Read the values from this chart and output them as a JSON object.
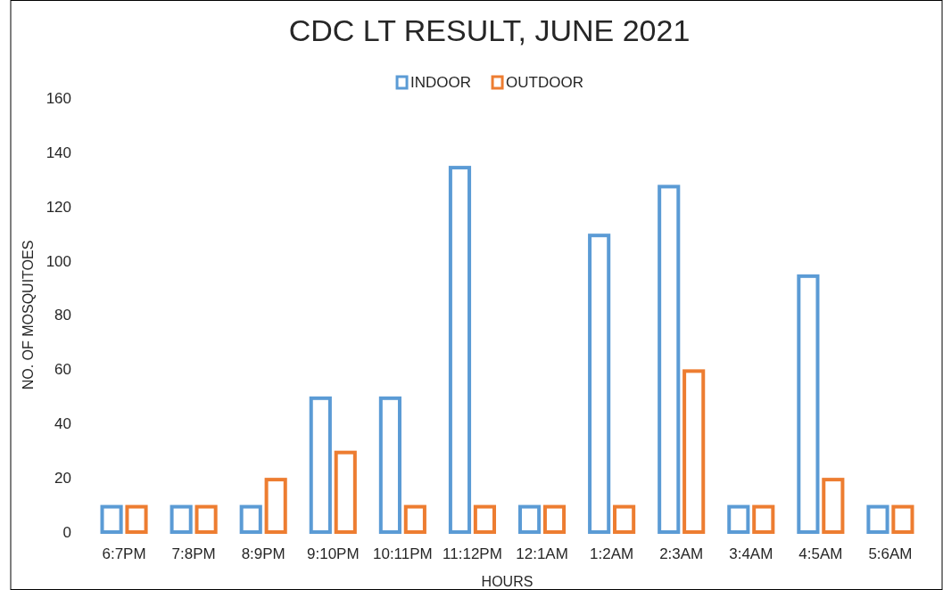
{
  "chart_data": {
    "type": "bar",
    "title": "CDC LT RESULT, JUNE 2021",
    "xlabel": "HOURS",
    "ylabel": "NO. OF MOSQUITOES",
    "categories": [
      "6:7PM",
      "7:8PM",
      "8:9PM",
      "9:10PM",
      "10:11PM",
      "11:12PM",
      "12:1AM",
      "1:2AM",
      "2:3AM",
      "3:4AM",
      "4:5AM",
      "5:6AM"
    ],
    "series": [
      {
        "name": "INDOOR",
        "color": "#5b9bd5",
        "values": [
          10,
          10,
          10,
          50,
          50,
          135,
          10,
          110,
          128,
          10,
          95,
          10
        ]
      },
      {
        "name": "OUTDOOR",
        "color": "#ed7d31",
        "values": [
          10,
          10,
          20,
          30,
          10,
          10,
          10,
          10,
          60,
          10,
          20,
          10
        ]
      }
    ],
    "ylim": [
      0,
      160
    ],
    "yticks": [
      0,
      20,
      40,
      60,
      80,
      100,
      120,
      140,
      160
    ],
    "grid": false,
    "legend": "top"
  }
}
